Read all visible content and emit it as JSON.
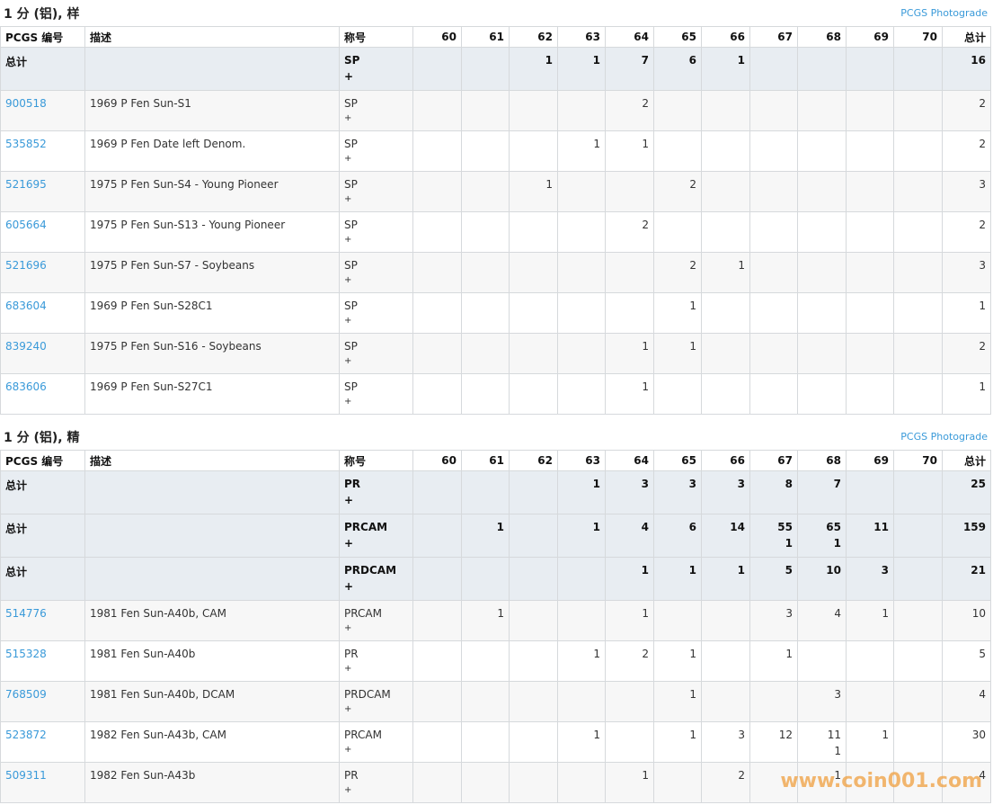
{
  "sections": [
    {
      "title": "1 分 (铝), 样",
      "link": "PCGS Photograde",
      "header": [
        "PCGS 编号",
        "描述",
        "称号",
        "60",
        "61",
        "62",
        "63",
        "64",
        "65",
        "66",
        "67",
        "68",
        "69",
        "70",
        "总计"
      ],
      "rows": [
        {
          "total": true,
          "id": "总计",
          "desc": null,
          "des": "SP",
          "plus": "+",
          "grades": [
            null,
            null,
            1,
            1,
            7,
            6,
            1,
            null,
            null,
            null,
            null
          ],
          "sum": 16
        },
        {
          "id": "900518",
          "desc": "1969 P Fen Sun-S1",
          "des": "SP",
          "plus": "+",
          "grades": [
            null,
            null,
            null,
            null,
            2,
            null,
            null,
            null,
            null,
            null,
            null
          ],
          "sum": 2
        },
        {
          "id": "535852",
          "desc": "1969 P Fen Date left Denom.",
          "des": "SP",
          "plus": "+",
          "grades": [
            null,
            null,
            null,
            1,
            1,
            null,
            null,
            null,
            null,
            null,
            null
          ],
          "sum": 2
        },
        {
          "id": "521695",
          "desc": "1975 P Fen Sun-S4 - Young Pioneer",
          "des": "SP",
          "plus": "+",
          "grades": [
            null,
            null,
            1,
            null,
            null,
            2,
            null,
            null,
            null,
            null,
            null
          ],
          "sum": 3
        },
        {
          "id": "605664",
          "desc": "1975 P Fen Sun-S13 - Young Pioneer",
          "des": "SP",
          "plus": "+",
          "grades": [
            null,
            null,
            null,
            null,
            2,
            null,
            null,
            null,
            null,
            null,
            null
          ],
          "sum": 2
        },
        {
          "id": "521696",
          "desc": "1975 P Fen Sun-S7 - Soybeans",
          "des": "SP",
          "plus": "+",
          "grades": [
            null,
            null,
            null,
            null,
            null,
            2,
            1,
            null,
            null,
            null,
            null
          ],
          "sum": 3
        },
        {
          "id": "683604",
          "desc": "1969 P Fen Sun-S28C1",
          "des": "SP",
          "plus": "+",
          "grades": [
            null,
            null,
            null,
            null,
            null,
            1,
            null,
            null,
            null,
            null,
            null
          ],
          "sum": 1
        },
        {
          "id": "839240",
          "desc": "1975 P Fen Sun-S16 - Soybeans",
          "des": "SP",
          "plus": "+",
          "grades": [
            null,
            null,
            null,
            null,
            1,
            1,
            null,
            null,
            null,
            null,
            null
          ],
          "sum": 2
        },
        {
          "id": "683606",
          "desc": "1969 P Fen Sun-S27C1",
          "des": "SP",
          "plus": "+",
          "grades": [
            null,
            null,
            null,
            null,
            1,
            null,
            null,
            null,
            null,
            null,
            null
          ],
          "sum": 1
        }
      ]
    },
    {
      "title": "1 分 (铝), 精",
      "link": "PCGS Photograde",
      "header": [
        "PCGS 编号",
        "描述",
        "称号",
        "60",
        "61",
        "62",
        "63",
        "64",
        "65",
        "66",
        "67",
        "68",
        "69",
        "70",
        "总计"
      ],
      "rows": [
        {
          "total": true,
          "id": "总计",
          "desc": null,
          "des": "PR",
          "plus": "+",
          "grades": [
            null,
            null,
            null,
            1,
            3,
            3,
            3,
            8,
            7,
            null,
            null
          ],
          "sum": 25
        },
        {
          "total": true,
          "id": "总计",
          "desc": null,
          "des": "PRCAM",
          "plus": "+",
          "grades": [
            null,
            1,
            null,
            1,
            4,
            6,
            14,
            [
              55,
              1
            ],
            [
              65,
              1
            ],
            11,
            null
          ],
          "sum": 159
        },
        {
          "total": true,
          "id": "总计",
          "desc": null,
          "des": "PRDCAM",
          "plus": "+",
          "grades": [
            null,
            null,
            null,
            null,
            1,
            1,
            1,
            5,
            10,
            3,
            null
          ],
          "sum": 21
        },
        {
          "id": "514776",
          "desc": "1981 Fen Sun-A40b, CAM",
          "des": "PRCAM",
          "plus": "+",
          "grades": [
            null,
            1,
            null,
            null,
            1,
            null,
            null,
            3,
            4,
            1,
            null
          ],
          "sum": 10
        },
        {
          "id": "515328",
          "desc": "1981 Fen Sun-A40b",
          "des": "PR",
          "plus": "+",
          "grades": [
            null,
            null,
            null,
            1,
            2,
            1,
            null,
            1,
            null,
            null,
            null
          ],
          "sum": 5
        },
        {
          "id": "768509",
          "desc": "1981 Fen Sun-A40b, DCAM",
          "des": "PRDCAM",
          "plus": "+",
          "grades": [
            null,
            null,
            null,
            null,
            null,
            1,
            null,
            null,
            3,
            null,
            null
          ],
          "sum": 4
        },
        {
          "id": "523872",
          "desc": "1982 Fen Sun-A43b, CAM",
          "des": "PRCAM",
          "plus": "+",
          "grades": [
            null,
            null,
            null,
            1,
            null,
            1,
            3,
            12,
            [
              11,
              1
            ],
            1,
            null
          ],
          "sum": 30
        },
        {
          "id": "509311",
          "desc": "1982 Fen Sun-A43b",
          "des": "PR",
          "plus": "+",
          "grades": [
            null,
            null,
            null,
            null,
            1,
            null,
            2,
            null,
            1,
            null,
            null
          ],
          "sum": 4
        }
      ]
    }
  ],
  "watermark": "www.coin001.com"
}
